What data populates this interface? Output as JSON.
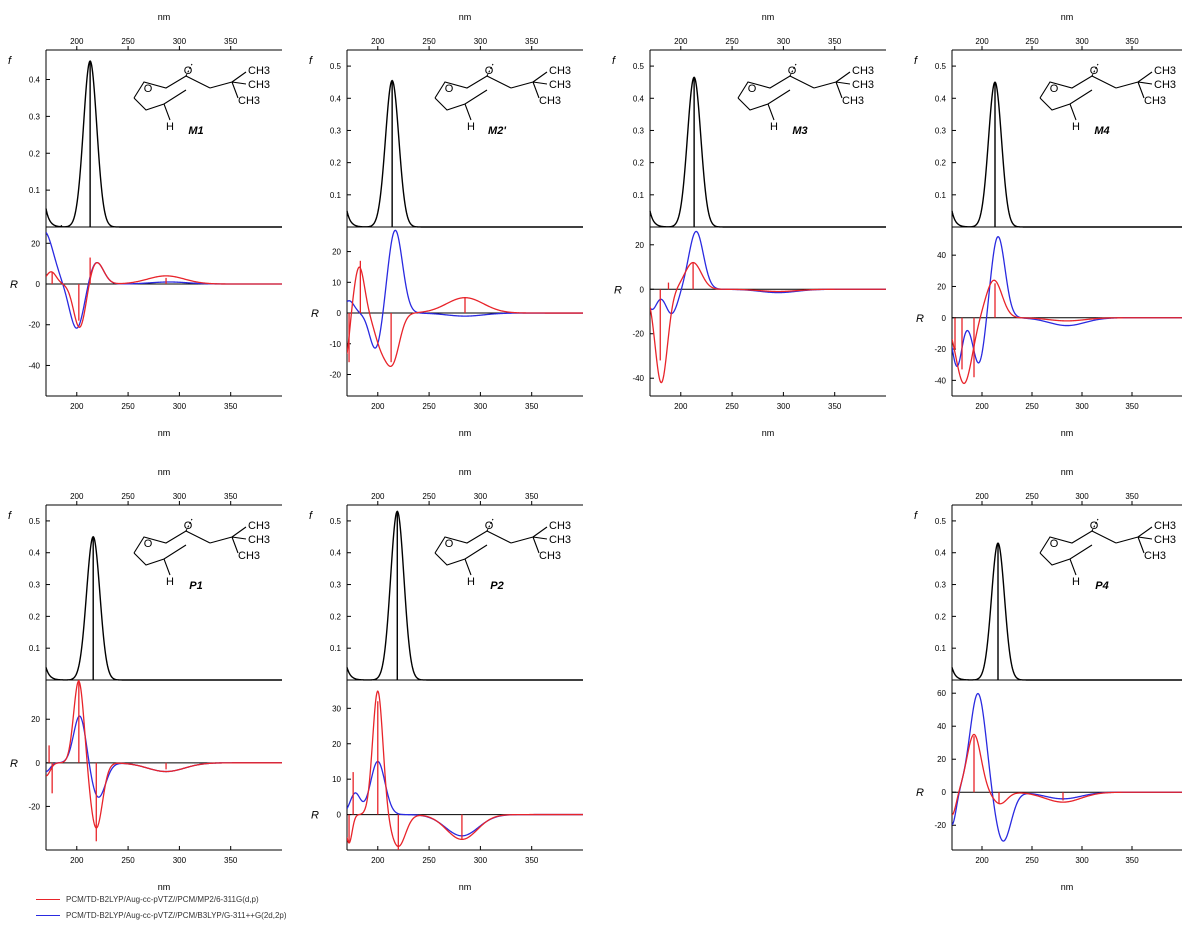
{
  "colors": {
    "series_1": "#e8242a",
    "series_2": "#2a2ae0",
    "f_curve": "#000000",
    "axis": "#000000"
  },
  "chart_data": [
    {
      "type": "line",
      "name": "M1",
      "xlabel": "nm",
      "x_ticks": [
        200,
        250,
        300,
        350
      ],
      "xlim": [
        170,
        400
      ],
      "f_panel": {
        "ylabel": "f",
        "ylim": [
          0,
          0.48
        ],
        "y_ticks": [
          0.1,
          0.2,
          0.3,
          0.4
        ],
        "curve": {
          "center": 213,
          "width": 6.5,
          "peak": 0.45
        },
        "baseline_tail": 0.05,
        "sticks": [
          {
            "x": 213,
            "y": 0.45
          },
          {
            "x": 185,
            "y": 0.005
          }
        ]
      },
      "r_panel": {
        "ylabel": "R",
        "ylim": [
          -55,
          28
        ],
        "y_ticks": [
          -40,
          -20,
          0,
          20
        ],
        "series": [
          {
            "color": "red",
            "components": [
              [
                175,
                6,
                5
              ],
              [
                203,
                -22,
                6
              ],
              [
                219,
                11,
                7
              ],
              [
                287,
                4,
                18
              ]
            ],
            "sticks": [
              {
                "x": 176,
                "y": 6
              },
              {
                "x": 202,
                "y": -18
              },
              {
                "x": 213,
                "y": 13
              },
              {
                "x": 287,
                "y": 3
              }
            ]
          },
          {
            "color": "blue",
            "components": [
              [
                168,
                26,
                9
              ],
              [
                200,
                -22,
                7
              ],
              [
                219,
                11,
                7
              ],
              [
                290,
                1,
                18
              ]
            ]
          }
        ]
      },
      "labels": {
        "molecule": "M1",
        "substituent": [
          "CH3",
          "CH3",
          "CH3"
        ]
      }
    },
    {
      "type": "line",
      "name": "M2'",
      "xlabel": "nm",
      "x_ticks": [
        200,
        250,
        300,
        350
      ],
      "xlim": [
        170,
        400
      ],
      "f_panel": {
        "ylabel": "f",
        "ylim": [
          0,
          0.55
        ],
        "y_ticks": [
          0.1,
          0.2,
          0.3,
          0.4,
          0.5
        ],
        "curve": {
          "center": 214,
          "width": 6.5,
          "peak": 0.455
        },
        "baseline_tail": 0.05,
        "sticks": [
          {
            "x": 214,
            "y": 0.455
          }
        ]
      },
      "r_panel": {
        "ylabel": "R",
        "ylim": [
          -27,
          28
        ],
        "y_ticks": [
          -20,
          -10,
          0,
          10,
          20
        ],
        "series": [
          {
            "color": "red",
            "components": [
              [
                168,
                -16,
                4
              ],
              [
                182,
                15,
                5
              ],
              [
                202,
                -8,
                6
              ],
              [
                214,
                -16,
                7
              ],
              [
                285,
                5,
                18
              ]
            ],
            "sticks": [
              {
                "x": 172,
                "y": -16
              },
              {
                "x": 183,
                "y": 17
              },
              {
                "x": 213,
                "y": -16
              },
              {
                "x": 285,
                "y": 5
              }
            ]
          },
          {
            "color": "blue",
            "components": [
              [
                172,
                4,
                5
              ],
              [
                198,
                -12,
                6
              ],
              [
                217,
                27,
                7
              ],
              [
                285,
                -1,
                18
              ]
            ]
          }
        ]
      },
      "labels": {
        "molecule": "M2'",
        "substituent": [
          "CH3",
          "CH3",
          "CH3"
        ]
      }
    },
    {
      "type": "line",
      "name": "M3",
      "xlabel": "nm",
      "x_ticks": [
        200,
        250,
        300,
        350
      ],
      "xlim": [
        170,
        400
      ],
      "f_panel": {
        "ylabel": "f",
        "ylim": [
          0,
          0.55
        ],
        "y_ticks": [
          0.1,
          0.2,
          0.3,
          0.4,
          0.5
        ],
        "curve": {
          "center": 213,
          "width": 6.5,
          "peak": 0.465
        },
        "baseline_tail": 0.05,
        "sticks": [
          {
            "x": 213,
            "y": 0.465
          }
        ]
      },
      "r_panel": {
        "ylabel": "R",
        "ylim": [
          -48,
          28
        ],
        "y_ticks": [
          -40,
          -20,
          0,
          20
        ],
        "series": [
          {
            "color": "red",
            "components": [
              [
                181,
                -42,
                6
              ],
              [
                212,
                12,
                8
              ],
              [
                295,
                -1,
                18
              ]
            ],
            "sticks": [
              {
                "x": 180,
                "y": -32
              },
              {
                "x": 188,
                "y": 3
              },
              {
                "x": 212,
                "y": 12
              }
            ]
          },
          {
            "color": "blue",
            "components": [
              [
                172,
                -9,
                5
              ],
              [
                191,
                -11,
                6
              ],
              [
                215,
                26,
                7
              ],
              [
                295,
                -1.5,
                18
              ]
            ]
          }
        ]
      },
      "labels": {
        "molecule": "M3",
        "substituent": [
          "CH3",
          "CH3",
          "CH3"
        ]
      }
    },
    {
      "type": "line",
      "name": "M4",
      "xlabel": "nm",
      "x_ticks": [
        200,
        250,
        300,
        350
      ],
      "xlim": [
        170,
        400
      ],
      "f_panel": {
        "ylabel": "f",
        "ylim": [
          0,
          0.55
        ],
        "y_ticks": [
          0.1,
          0.2,
          0.3,
          0.4,
          0.5
        ],
        "curve": {
          "center": 213,
          "width": 6.5,
          "peak": 0.45
        },
        "baseline_tail": 0.05,
        "sticks": [
          {
            "x": 213,
            "y": 0.45
          }
        ]
      },
      "r_panel": {
        "ylabel": "R",
        "ylim": [
          -50,
          58
        ],
        "y_ticks": [
          -40,
          -20,
          0,
          20,
          40
        ],
        "series": [
          {
            "color": "red",
            "components": [
              [
                182,
                -42,
                8
              ],
              [
                212,
                24,
                8
              ],
              [
                285,
                -2,
                18
              ]
            ],
            "sticks": [
              {
                "x": 173,
                "y": -20
              },
              {
                "x": 180,
                "y": -33
              },
              {
                "x": 192,
                "y": -38
              },
              {
                "x": 213,
                "y": 22
              }
            ]
          },
          {
            "color": "blue",
            "components": [
              [
                175,
                -31,
                5
              ],
              [
                197,
                -30,
                6
              ],
              [
                216,
                52,
                7
              ],
              [
                285,
                -5,
                18
              ]
            ]
          }
        ]
      },
      "labels": {
        "molecule": "M4",
        "substituent": [
          "CH3",
          "CH3",
          "CH3"
        ]
      }
    },
    {
      "type": "line",
      "name": "P1",
      "xlabel": "nm",
      "x_ticks": [
        200,
        250,
        300,
        350
      ],
      "xlim": [
        170,
        400
      ],
      "f_panel": {
        "ylabel": "f",
        "ylim": [
          0,
          0.55
        ],
        "y_ticks": [
          0.1,
          0.2,
          0.3,
          0.4,
          0.5
        ],
        "curve": {
          "center": 216,
          "width": 6.5,
          "peak": 0.45
        },
        "baseline_tail": 0.04,
        "sticks": [
          {
            "x": 216,
            "y": 0.45
          }
        ]
      },
      "r_panel": {
        "ylabel": "R",
        "ylim": [
          -40,
          38
        ],
        "y_ticks": [
          -20,
          0,
          20
        ],
        "series": [
          {
            "color": "red",
            "components": [
              [
                170,
                -6,
                4
              ],
              [
                202,
                38,
                5
              ],
              [
                219,
                -30,
                6
              ],
              [
                287,
                -4,
                18
              ]
            ],
            "sticks": [
              {
                "x": 173,
                "y": 8
              },
              {
                "x": 176,
                "y": -14
              },
              {
                "x": 202,
                "y": 40
              },
              {
                "x": 219,
                "y": -36
              },
              {
                "x": 287,
                "y": -3
              }
            ]
          },
          {
            "color": "blue",
            "components": [
              [
                170,
                -4,
                4
              ],
              [
                203,
                22,
                6
              ],
              [
                221,
                -16,
                7
              ],
              [
                287,
                -4,
                18
              ]
            ]
          }
        ]
      },
      "labels": {
        "molecule": "P1",
        "substituent": [
          "CH3",
          "CH3",
          "CH3"
        ]
      }
    },
    {
      "type": "line",
      "name": "P2",
      "xlabel": "nm",
      "x_ticks": [
        200,
        250,
        300,
        350
      ],
      "xlim": [
        170,
        400
      ],
      "f_panel": {
        "ylabel": "f",
        "ylim": [
          0,
          0.55
        ],
        "y_ticks": [
          0.1,
          0.2,
          0.3,
          0.4,
          0.5
        ],
        "curve": {
          "center": 219,
          "width": 6.5,
          "peak": 0.53
        },
        "baseline_tail": 0.04,
        "sticks": [
          {
            "x": 219,
            "y": 0.53
          }
        ]
      },
      "r_panel": {
        "ylabel": "R",
        "ylim": [
          -10,
          38
        ],
        "y_ticks": [
          0,
          10,
          20,
          30
        ],
        "series": [
          {
            "color": "red",
            "components": [
              [
                172,
                -8,
                3
              ],
              [
                200,
                35,
                5
              ],
              [
                220,
                -9,
                7
              ],
              [
                282,
                -7,
                15
              ]
            ],
            "sticks": [
              {
                "x": 172,
                "y": -8
              },
              {
                "x": 176,
                "y": 12
              },
              {
                "x": 200,
                "y": 32
              },
              {
                "x": 220,
                "y": -10
              },
              {
                "x": 282,
                "y": -7
              }
            ]
          },
          {
            "color": "blue",
            "components": [
              [
                178,
                6,
                5
              ],
              [
                200,
                15,
                7
              ],
              [
                282,
                -6,
                16
              ]
            ]
          }
        ]
      },
      "labels": {
        "molecule": "P2",
        "substituent": [
          "CH3",
          "CH3",
          "CH3"
        ]
      }
    },
    {
      "type": "line",
      "name": "P4",
      "xlabel": "nm",
      "x_ticks": [
        200,
        250,
        300,
        350
      ],
      "xlim": [
        170,
        400
      ],
      "f_panel": {
        "ylabel": "f",
        "ylim": [
          0,
          0.55
        ],
        "y_ticks": [
          0.1,
          0.2,
          0.3,
          0.4,
          0.5
        ],
        "curve": {
          "center": 216,
          "width": 6.5,
          "peak": 0.43
        },
        "baseline_tail": 0.04,
        "sticks": [
          {
            "x": 216,
            "y": 0.43
          }
        ]
      },
      "r_panel": {
        "ylabel": "R",
        "ylim": [
          -35,
          68
        ],
        "y_ticks": [
          -20,
          0,
          20,
          40,
          60
        ],
        "series": [
          {
            "color": "red",
            "components": [
              [
                170,
                -14,
                4
              ],
              [
                192,
                35,
                7
              ],
              [
                218,
                -7,
                7
              ],
              [
                281,
                -6,
                18
              ]
            ],
            "sticks": [
              {
                "x": 192,
                "y": 34
              },
              {
                "x": 217,
                "y": -7
              },
              {
                "x": 281,
                "y": -5
              }
            ]
          },
          {
            "color": "blue",
            "components": [
              [
                170,
                -20,
                4
              ],
              [
                196,
                60,
                8
              ],
              [
                221,
                -30,
                8
              ],
              [
                281,
                -4,
                18
              ]
            ]
          }
        ]
      },
      "labels": {
        "molecule": "P4",
        "substituent": [
          "CH3",
          "CH3",
          "CH3"
        ]
      }
    }
  ],
  "legend": [
    {
      "color": "red",
      "label": "PCM/TD-B2LYP/Aug-cc-pVTZ//PCM/MP2/6-311G(d,p)"
    },
    {
      "color": "blue",
      "label": "PCM/TD-B2LYP/Aug-cc-pVTZ//PCM/B3LYP/G-311++G(2d,2p)"
    }
  ]
}
